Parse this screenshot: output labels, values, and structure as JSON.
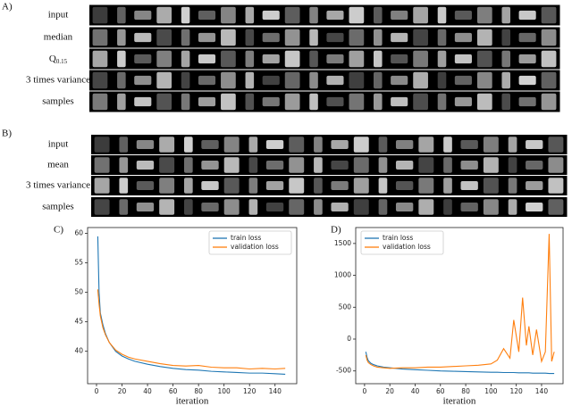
{
  "panel_a": {
    "label": "A)",
    "rows": [
      "input",
      "median",
      "Q",
      "3 times variance",
      "samples"
    ],
    "q_subscript": "0.15"
  },
  "panel_b": {
    "label": "B)",
    "rows": [
      "input",
      "mean",
      "3 times variance",
      "samples"
    ]
  },
  "chart_data": [
    {
      "type": "line",
      "label": "C)",
      "x_label": "iteration",
      "x": [
        1,
        2,
        3,
        5,
        7,
        10,
        15,
        20,
        25,
        30,
        40,
        50,
        60,
        70,
        80,
        90,
        100,
        110,
        120,
        130,
        140,
        148
      ],
      "series": [
        {
          "name": "train loss",
          "color": "#1f77b4",
          "values": [
            59.5,
            50,
            46.5,
            44.5,
            43,
            41.5,
            40,
            39.2,
            38.7,
            38.3,
            37.8,
            37.4,
            37.1,
            36.9,
            36.8,
            36.6,
            36.5,
            36.4,
            36.3,
            36.3,
            36.2,
            36.1
          ]
        },
        {
          "name": "validation loss",
          "color": "#ff7f0e",
          "values": [
            50.5,
            48,
            46,
            44,
            42.8,
            41.5,
            40.2,
            39.5,
            39,
            38.7,
            38.3,
            37.9,
            37.6,
            37.5,
            37.6,
            37.3,
            37.2,
            37.2,
            37.0,
            37.1,
            37.0,
            37.1
          ]
        }
      ],
      "xlim": [
        -7,
        157
      ],
      "xticks": [
        0,
        20,
        40,
        60,
        80,
        100,
        120,
        140
      ],
      "ylim": [
        34.5,
        61
      ],
      "yticks": [
        40,
        45,
        50,
        55,
        60
      ],
      "legend": "upper right"
    },
    {
      "type": "line",
      "label": "D)",
      "x_label": "iteration",
      "x": [
        1,
        2,
        3,
        5,
        7,
        10,
        15,
        20,
        30,
        40,
        50,
        60,
        70,
        80,
        90,
        100,
        105,
        110,
        115,
        118,
        122,
        125,
        128,
        130,
        133,
        136,
        140,
        143,
        146,
        148,
        150
      ],
      "series": [
        {
          "name": "train loss",
          "color": "#1f77b4",
          "values": [
            -200,
            -290,
            -340,
            -380,
            -400,
            -420,
            -440,
            -450,
            -470,
            -480,
            -490,
            -500,
            -505,
            -510,
            -515,
            -520,
            -520,
            -525,
            -525,
            -525,
            -530,
            -530,
            -530,
            -530,
            -535,
            -535,
            -535,
            -535,
            -540,
            -540,
            -540
          ]
        },
        {
          "name": "validation loss",
          "color": "#ff7f0e",
          "values": [
            -250,
            -330,
            -370,
            -400,
            -420,
            -440,
            -450,
            -460,
            -450,
            -450,
            -440,
            -440,
            -430,
            -420,
            -410,
            -390,
            -330,
            -150,
            -300,
            300,
            -200,
            650,
            -100,
            200,
            -250,
            150,
            -350,
            -200,
            1650,
            -350,
            -200
          ]
        }
      ],
      "xlim": [
        -7,
        157
      ],
      "xticks": [
        0,
        20,
        40,
        60,
        80,
        100,
        120,
        140
      ],
      "ylim": [
        -700,
        1750
      ],
      "yticks": [
        -500,
        0,
        500,
        1000,
        1500
      ],
      "legend": "upper left"
    }
  ]
}
